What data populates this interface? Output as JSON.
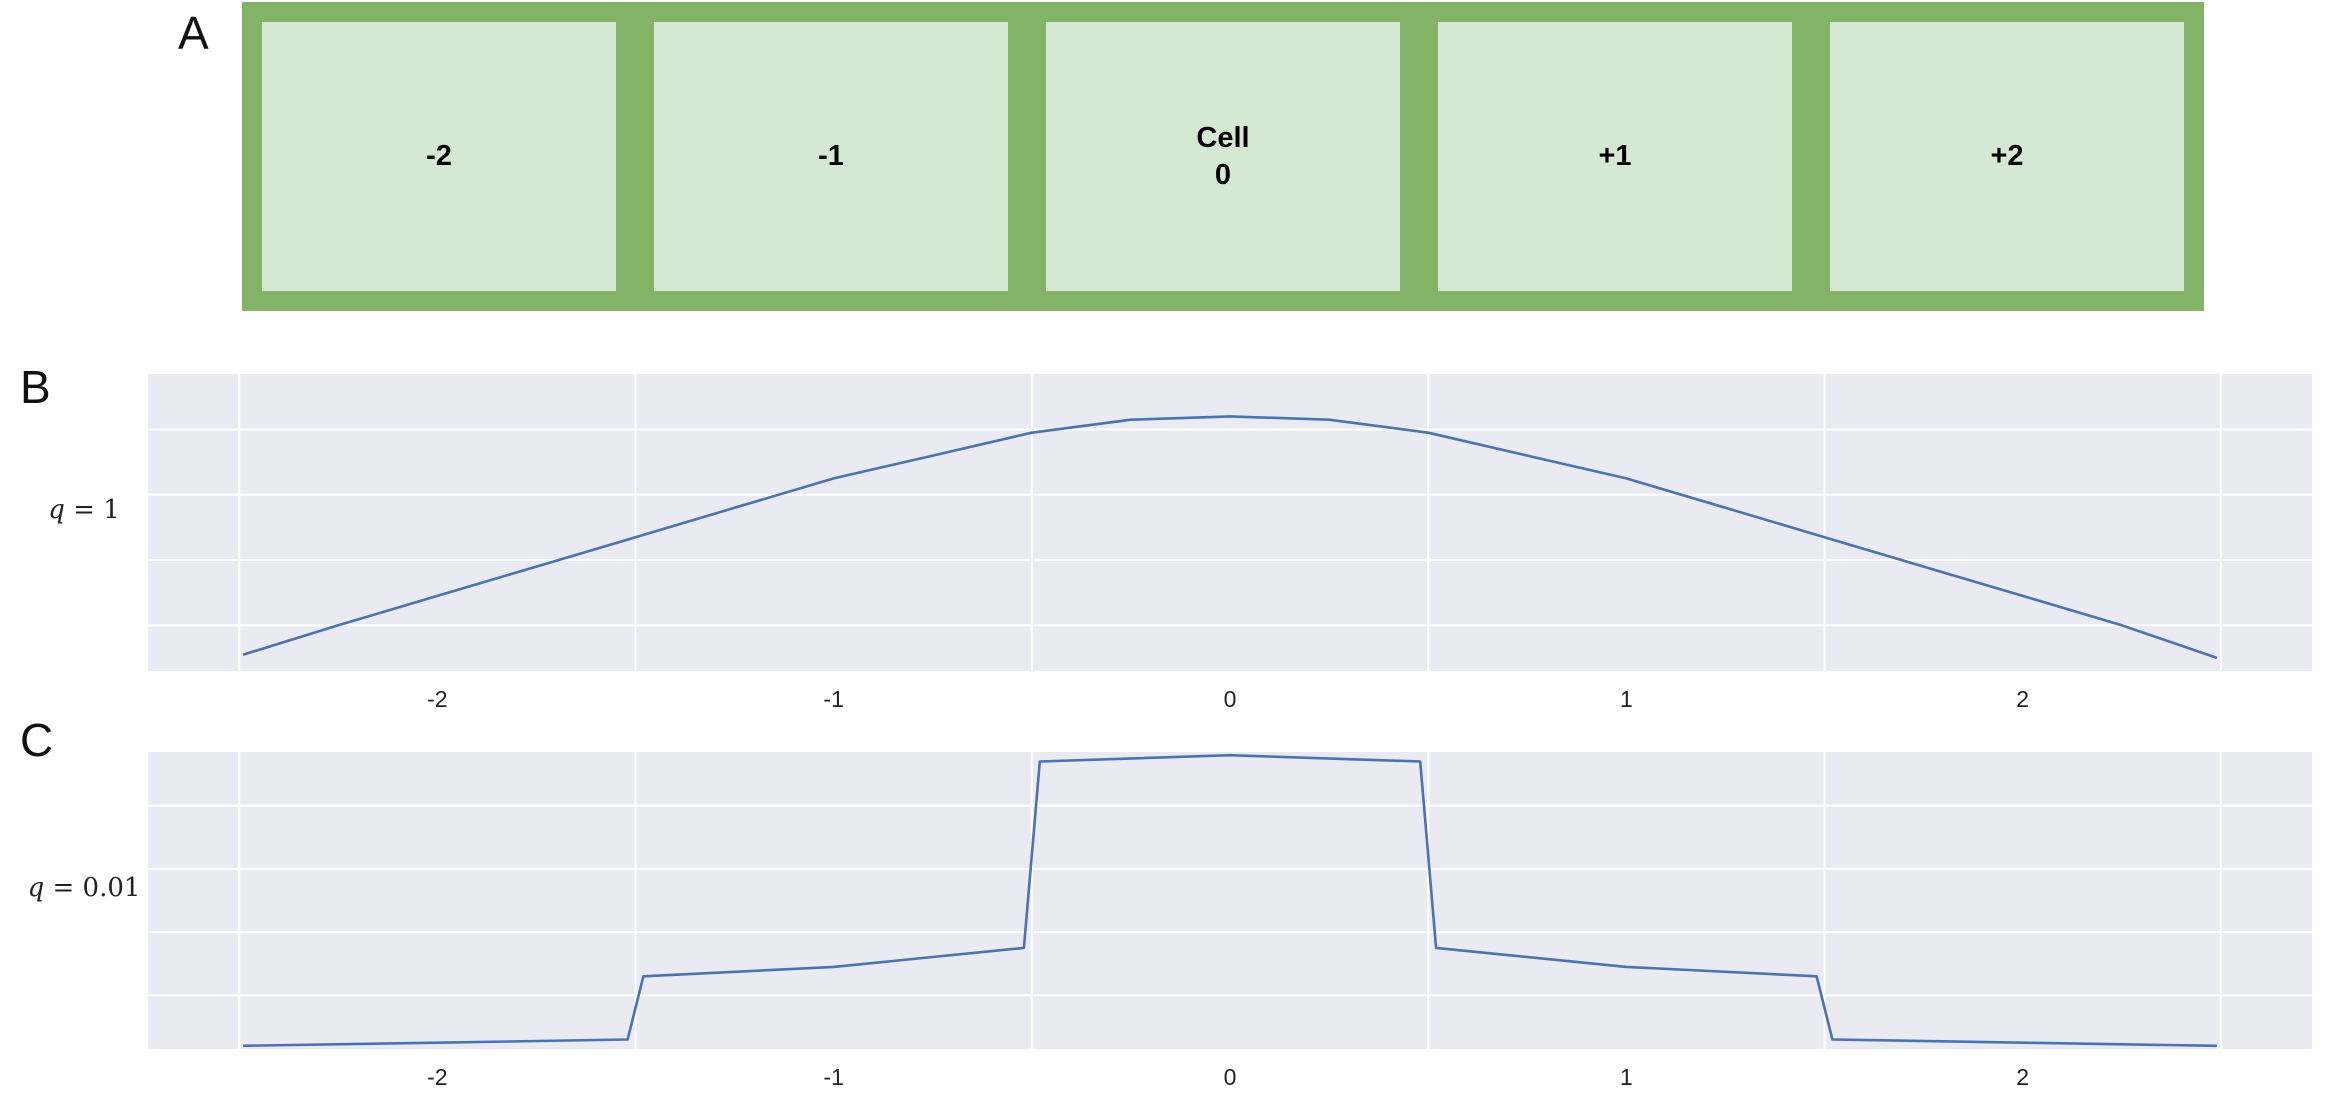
{
  "panel_a": {
    "letter": "A",
    "cells": [
      {
        "label": "-2"
      },
      {
        "label": "-1"
      },
      {
        "label": "Cell\n0"
      },
      {
        "label": "+1"
      },
      {
        "label": "+2"
      }
    ],
    "fill_color": "#d5e8d4",
    "border_color": "#82b366"
  },
  "chart_data": [
    {
      "panel_letter": "B",
      "type": "line",
      "row_label": {
        "var": "q",
        "rest": " = 1"
      },
      "xlim": [
        -2.73,
        2.73
      ],
      "ylim": [
        0.06,
        0.97
      ],
      "x_ticks": [
        -2,
        -1,
        0,
        1,
        2
      ],
      "x_tick_labels": [
        "-2",
        "-1",
        "0",
        "1",
        "2"
      ],
      "x_gridlines": [
        -2.5,
        -1.5,
        -0.5,
        0.5,
        1.5,
        2.5
      ],
      "y_gridlines": [
        0.2,
        0.4,
        0.6,
        0.8
      ],
      "line_color": "#4c72b0",
      "background_color": "#eaeaf2",
      "x": [
        -2.49,
        -2.25,
        -2.0,
        -1.75,
        -1.5,
        -1.25,
        -1.0,
        -0.75,
        -0.5,
        -0.25,
        0.0,
        0.25,
        0.5,
        0.75,
        1.0,
        1.25,
        1.5,
        1.75,
        2.0,
        2.25,
        2.49
      ],
      "y": [
        0.11,
        0.2,
        0.29,
        0.38,
        0.47,
        0.56,
        0.65,
        0.72,
        0.79,
        0.83,
        0.84,
        0.83,
        0.79,
        0.72,
        0.65,
        0.56,
        0.47,
        0.38,
        0.29,
        0.2,
        0.1
      ]
    },
    {
      "panel_letter": "C",
      "type": "line",
      "row_label": {
        "var": "q",
        "rest": " = 0.01"
      },
      "xlim": [
        -2.73,
        2.73
      ],
      "ylim": [
        0.03,
        0.97
      ],
      "x_ticks": [
        -2,
        -1,
        0,
        1,
        2
      ],
      "x_tick_labels": [
        "-2",
        "-1",
        "0",
        "1",
        "2"
      ],
      "x_gridlines": [
        -2.5,
        -1.5,
        -0.5,
        0.5,
        1.5,
        2.5
      ],
      "y_gridlines": [
        0.2,
        0.4,
        0.6,
        0.8
      ],
      "line_color": "#4c72b0",
      "background_color": "#eaeaf2",
      "x": [
        -2.49,
        -2.0,
        -1.52,
        -1.48,
        -1.0,
        -0.52,
        -0.48,
        0.0,
        0.48,
        0.52,
        1.0,
        1.48,
        1.52,
        2.0,
        2.49
      ],
      "y": [
        0.04,
        0.05,
        0.06,
        0.26,
        0.29,
        0.35,
        0.94,
        0.96,
        0.94,
        0.35,
        0.29,
        0.26,
        0.06,
        0.05,
        0.04
      ]
    }
  ]
}
